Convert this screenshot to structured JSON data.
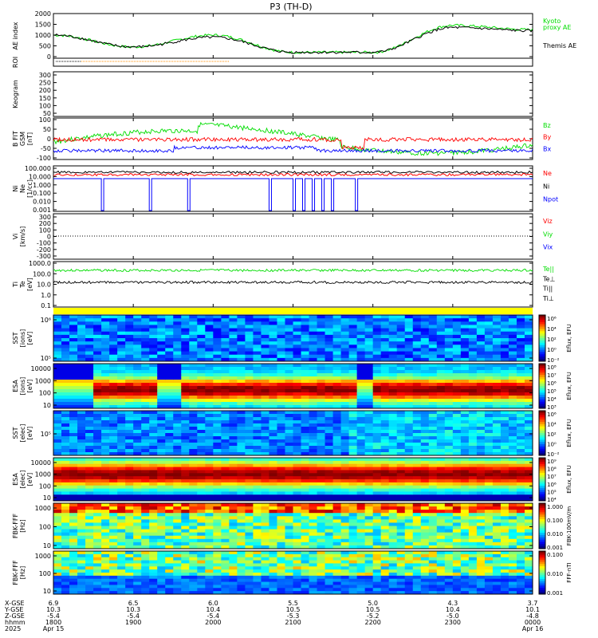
{
  "title": "P3 (TH-D)",
  "colors": {
    "black": "#000000",
    "red": "#ff0000",
    "green": "#00dd00",
    "blue": "#0000ff",
    "orange": "#ff8c00"
  },
  "panels": {
    "ae": {
      "ylabel": "AE index",
      "ticks": [
        "2000",
        "1500",
        "1000",
        "500",
        "0"
      ],
      "legend": [
        "Kyoto",
        "proxy AE",
        "Themis AE"
      ]
    },
    "roi": {
      "ylabel": "ROI"
    },
    "keogram": {
      "ylabel": "Keogram",
      "ticks": [
        "300",
        "250",
        "200",
        "150",
        "100",
        "50"
      ]
    },
    "bfield": {
      "ylabel": [
        "B FIT",
        "GSM",
        "[nT]"
      ],
      "ticks": [
        "100",
        "50",
        "0",
        "-50",
        "-100"
      ],
      "legend": [
        "Bz",
        "By",
        "Bx"
      ]
    },
    "density": {
      "ylabel": [
        "Ni",
        "Ne",
        "[1/cc]"
      ],
      "ticks": [
        "100.000",
        "10.000",
        "1.000",
        "0.100",
        "0.010",
        "0.001"
      ],
      "legend": [
        "Ne",
        "Ni",
        "Npot"
      ]
    },
    "velocity": {
      "ylabel": [
        "Vi",
        "[km/s]"
      ],
      "ticks": [
        "300",
        "200",
        "100",
        "0",
        "-100",
        "-200",
        "-300"
      ],
      "legend": [
        "Viz",
        "Viy",
        "Vix"
      ]
    },
    "temp": {
      "ylabel": [
        "Ti",
        "Te",
        "[eV]"
      ],
      "ticks": [
        "1000.0",
        "100.0",
        "10.0",
        "1.0",
        "0.1"
      ],
      "legend": [
        "Te||",
        "Te⊥",
        "Ti||",
        "Ti⊥"
      ]
    },
    "spec": [
      {
        "ylabel": [
          "SST",
          "[ions]",
          "[eV]"
        ],
        "ticks": [
          "10⁶",
          "10⁵"
        ],
        "cbar": [
          "10⁶",
          "10⁴",
          "10²",
          "10⁰",
          "10⁻²"
        ],
        "clabel": "Eflux, EFU"
      },
      {
        "ylabel": [
          "ESA",
          "[ions]",
          "[eV]"
        ],
        "ticks": [
          "10000",
          "1000",
          "100",
          "10"
        ],
        "cbar": [
          "10⁸",
          "10⁷",
          "10⁶",
          "10⁵",
          "10⁴",
          "10³"
        ],
        "clabel": "Eflux, EFU"
      },
      {
        "ylabel": [
          "SST",
          "[elec]",
          "[eV]"
        ],
        "ticks": [
          "10⁵"
        ],
        "cbar": [
          "10⁶",
          "10⁴",
          "10²",
          "10⁰",
          "10⁻²"
        ],
        "clabel": "Eflux, EFU"
      },
      {
        "ylabel": [
          "ESA",
          "[elec]",
          "[eV]"
        ],
        "ticks": [
          "10000",
          "1000",
          "100",
          "10"
        ],
        "cbar": [
          "10⁹",
          "10⁸",
          "10⁷",
          "10⁶",
          "10⁵",
          "10⁴"
        ],
        "clabel": "Eflux, EFU"
      },
      {
        "ylabel": [
          "FBK-FFF",
          "[Hz]"
        ],
        "ticks": [
          "1000",
          "100",
          "10"
        ],
        "cbar": [
          "1.000",
          "0.100",
          "0.010",
          "0.001"
        ],
        "clabel": "FBK-100mV/m"
      },
      {
        "ylabel": [
          "FBK-FFF",
          "[Hz]"
        ],
        "ticks": [
          "1000",
          "100",
          "10"
        ],
        "cbar": [
          "0.100",
          "0.010",
          "0.001"
        ],
        "clabel": "FFF-nTI"
      }
    ]
  },
  "xaxis": {
    "row_labels": [
      "X-GSE",
      "Y-GSE",
      "Z-GSE",
      "hhmm",
      "2025"
    ],
    "ticks": [
      {
        "x": "6.9",
        "y": "10.3",
        "z": "-5.4",
        "hhmm": "1800",
        "date": "Apr 15"
      },
      {
        "x": "6.5",
        "y": "10.3",
        "z": "-5.4",
        "hhmm": "1900",
        "date": ""
      },
      {
        "x": "6.0",
        "y": "10.4",
        "z": "-5.4",
        "hhmm": "2000",
        "date": ""
      },
      {
        "x": "5.5",
        "y": "10.5",
        "z": "-5.3",
        "hhmm": "2100",
        "date": ""
      },
      {
        "x": "5.0",
        "y": "10.5",
        "z": "-5.2",
        "hhmm": "2200",
        "date": ""
      },
      {
        "x": "4.3",
        "y": "10.4",
        "z": "-5.0",
        "hhmm": "2300",
        "date": ""
      },
      {
        "x": "3.7",
        "y": "10.1",
        "z": "-4.8",
        "hhmm": "0000",
        "date": "Apr 16"
      }
    ]
  },
  "chart_data": {
    "type": "line",
    "x": [
      "1800",
      "1900",
      "2000",
      "2100",
      "2200",
      "2300",
      "0000"
    ],
    "series": [
      {
        "name": "Kyoto proxy AE",
        "values": [
          1000,
          450,
          1000,
          200,
          200,
          1450,
          1250
        ]
      },
      {
        "name": "Themis AE",
        "values": [
          1000,
          450,
          900,
          200,
          200,
          1350,
          1200
        ]
      }
    ],
    "ylim": [
      0,
      2000
    ],
    "ylabel": "AE index"
  }
}
